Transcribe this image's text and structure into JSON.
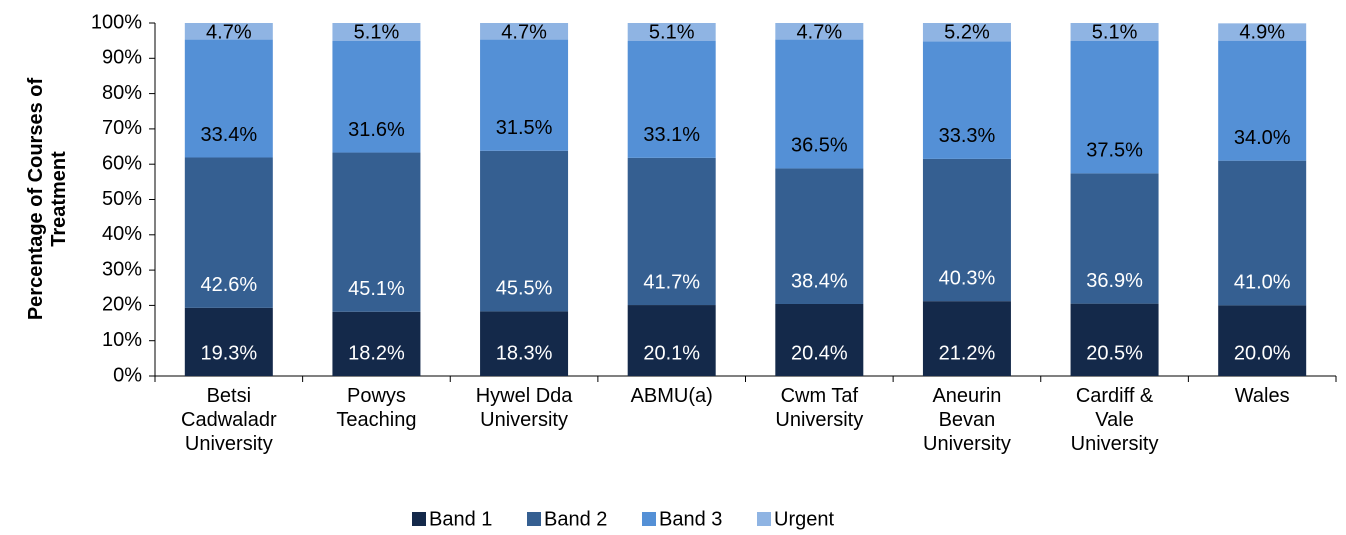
{
  "chart_data": {
    "type": "stacked-bar",
    "y_label": "Percentage of Courses of Treatment",
    "categories": [
      "Betsi Cadwaladr University",
      "Powys Teaching",
      "Hywel Dda University",
      "ABMU(a)",
      "Cwm Taf University",
      "Aneurin Bevan University",
      "Cardiff & Vale University",
      "Wales"
    ],
    "series": [
      {
        "name": "Band 1",
        "color": "#14294a",
        "values": [
          19.3,
          18.2,
          18.3,
          20.1,
          20.4,
          21.2,
          20.5,
          20.0
        ],
        "value_labels": [
          "19.3%",
          "18.2%",
          "18.3%",
          "20.1%",
          "20.4%",
          "21.2%",
          "20.5%",
          "20.0%"
        ]
      },
      {
        "name": "Band 2",
        "color": "#355f91",
        "values": [
          42.6,
          45.1,
          45.5,
          41.7,
          38.4,
          40.3,
          36.9,
          41.0
        ],
        "value_labels": [
          "42.6%",
          "45.1%",
          "45.5%",
          "41.7%",
          "38.4%",
          "40.3%",
          "36.9%",
          "41.0%"
        ]
      },
      {
        "name": "Band 3",
        "color": "#5490d6",
        "values": [
          33.4,
          31.6,
          31.5,
          33.1,
          36.5,
          33.3,
          37.5,
          34.0
        ],
        "value_labels": [
          "33.4%",
          "31.6%",
          "31.5%",
          "33.1%",
          "36.5%",
          "33.3%",
          "37.5%",
          "34.0%"
        ]
      },
      {
        "name": "Urgent",
        "color": "#8fb4e3",
        "values": [
          4.7,
          5.1,
          4.7,
          5.1,
          4.7,
          5.2,
          5.1,
          4.9
        ],
        "value_labels": [
          "4.7%",
          "5.1%",
          "4.7%",
          "5.1%",
          "4.7%",
          "5.2%",
          "5.1%",
          "4.9%"
        ]
      }
    ],
    "ylim": [
      0,
      100
    ],
    "yticks": [
      {
        "value": 0,
        "label": "0%"
      },
      {
        "value": 10,
        "label": "10%"
      },
      {
        "value": 20,
        "label": "20%"
      },
      {
        "value": 30,
        "label": "30%"
      },
      {
        "value": 40,
        "label": "40%"
      },
      {
        "value": 50,
        "label": "50%"
      },
      {
        "value": 60,
        "label": "60%"
      },
      {
        "value": 70,
        "label": "70%"
      },
      {
        "value": 80,
        "label": "80%"
      },
      {
        "value": 90,
        "label": "90%"
      },
      {
        "value": 100,
        "label": "100%"
      }
    ],
    "grid": false,
    "legend": "bottom"
  }
}
